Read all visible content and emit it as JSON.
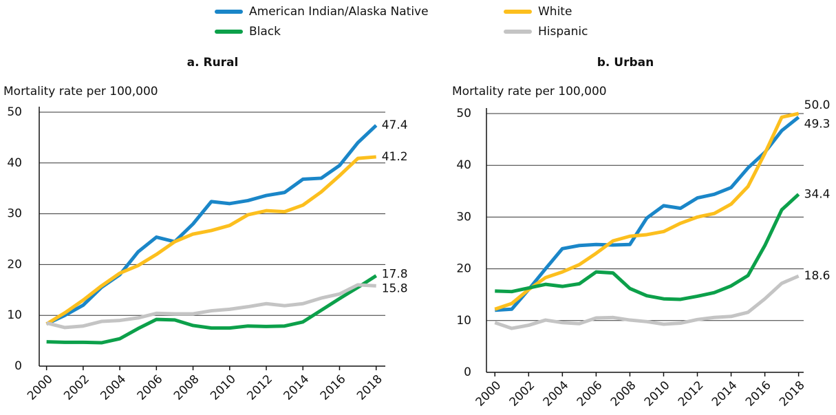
{
  "chart_data": [
    {
      "type": "line",
      "title": "a. Rural",
      "y_label": "Mortality rate per 100,000",
      "x": [
        2000,
        2001,
        2002,
        2003,
        2004,
        2005,
        2006,
        2007,
        2008,
        2009,
        2010,
        2011,
        2012,
        2013,
        2014,
        2015,
        2016,
        2017,
        2018
      ],
      "xlim": [
        1999.6,
        2018.5
      ],
      "xticks": [
        2000,
        2002,
        2004,
        2006,
        2008,
        2010,
        2012,
        2014,
        2016,
        2018
      ],
      "ylim": [
        0,
        50
      ],
      "yticks": [
        0,
        10,
        20,
        30,
        40,
        50
      ],
      "grid": true,
      "series": [
        {
          "name": "American Indian/Alaska Native",
          "color": "#1a86c8",
          "values": [
            8.3,
            10,
            12,
            15.5,
            18,
            22.5,
            25.4,
            24.5,
            28,
            32.4,
            32,
            32.6,
            33.6,
            34.2,
            36.8,
            37,
            39.5,
            44,
            47.4
          ],
          "value_labels": [
            null,
            null,
            null,
            null,
            null,
            null,
            null,
            null,
            null,
            null,
            null,
            null,
            null,
            null,
            null,
            null,
            null,
            null,
            "47.4"
          ]
        },
        {
          "name": "White",
          "color": "#fcbf1e",
          "values": [
            8.3,
            10.5,
            13,
            15.8,
            18.3,
            19.8,
            22,
            24.5,
            26,
            26.7,
            27.7,
            29.8,
            30.6,
            30.4,
            31.7,
            34.3,
            37.5,
            40.9,
            41.2
          ],
          "value_labels": [
            null,
            null,
            null,
            null,
            null,
            null,
            null,
            null,
            null,
            null,
            null,
            null,
            null,
            null,
            null,
            null,
            null,
            null,
            "41.2"
          ]
        },
        {
          "name": "Black",
          "color": "#0ca04a",
          "values": [
            4.8,
            4.7,
            4.7,
            4.6,
            5.4,
            7.4,
            9.2,
            9.1,
            8,
            7.5,
            7.5,
            7.9,
            7.8,
            7.9,
            8.7,
            11,
            13.3,
            15.5,
            17.8
          ],
          "value_labels": [
            null,
            null,
            null,
            null,
            null,
            null,
            null,
            null,
            null,
            null,
            null,
            null,
            null,
            null,
            null,
            null,
            null,
            null,
            "17.8"
          ]
        },
        {
          "name": "Hispanic",
          "color": "#c4c4c4",
          "values": [
            8.5,
            7.6,
            7.9,
            8.8,
            9,
            9.5,
            10.4,
            10.3,
            10.3,
            10.9,
            11.2,
            11.7,
            12.3,
            11.9,
            12.3,
            13.4,
            14.2,
            16,
            15.8
          ],
          "value_labels": [
            null,
            null,
            null,
            null,
            null,
            null,
            null,
            null,
            null,
            null,
            null,
            null,
            null,
            null,
            null,
            null,
            null,
            null,
            "15.8"
          ]
        }
      ]
    },
    {
      "type": "line",
      "title": "b. Urban",
      "y_label": "Mortality rate per 100,000",
      "x": [
        2000,
        2001,
        2002,
        2003,
        2004,
        2005,
        2006,
        2007,
        2008,
        2009,
        2010,
        2011,
        2012,
        2013,
        2014,
        2015,
        2016,
        2017,
        2018
      ],
      "xlim": [
        1999.5,
        2018.3
      ],
      "xticks": [
        2000,
        2002,
        2004,
        2006,
        2008,
        2010,
        2012,
        2014,
        2016,
        2018
      ],
      "ylim": [
        0,
        50
      ],
      "yticks": [
        0,
        10,
        20,
        30,
        40,
        50
      ],
      "grid": true,
      "series": [
        {
          "name": "American Indian/Alaska Native",
          "color": "#1a86c8",
          "values": [
            12,
            12.2,
            16,
            20,
            23.9,
            24.5,
            24.7,
            24.6,
            24.7,
            29.8,
            32.2,
            31.7,
            33.7,
            34.4,
            35.7,
            39.5,
            42.5,
            46.7,
            49.3
          ],
          "value_labels": [
            null,
            null,
            null,
            null,
            null,
            null,
            null,
            null,
            null,
            null,
            null,
            null,
            null,
            null,
            null,
            null,
            null,
            null,
            "49.3"
          ]
        },
        {
          "name": "White",
          "color": "#fcbf1e",
          "values": [
            12.2,
            13.3,
            16,
            18.3,
            19.4,
            20.8,
            23,
            25.4,
            26.3,
            26.6,
            27.2,
            28.8,
            30,
            30.7,
            32.5,
            35.9,
            42.3,
            49.3,
            50.0
          ],
          "value_labels": [
            null,
            null,
            null,
            null,
            null,
            null,
            null,
            null,
            null,
            null,
            null,
            null,
            null,
            null,
            null,
            null,
            null,
            null,
            "50.0"
          ]
        },
        {
          "name": "Black",
          "color": "#0ca04a",
          "values": [
            15.7,
            15.6,
            16.3,
            17,
            16.6,
            17.1,
            19.4,
            19.2,
            16.2,
            14.8,
            14.2,
            14.1,
            14.7,
            15.4,
            16.7,
            18.7,
            24.5,
            31.4,
            34.4
          ],
          "value_labels": [
            null,
            null,
            null,
            null,
            null,
            null,
            null,
            null,
            null,
            null,
            null,
            null,
            null,
            null,
            null,
            null,
            null,
            null,
            "34.4"
          ]
        },
        {
          "name": "Hispanic",
          "color": "#c4c4c4",
          "values": [
            9.6,
            8.5,
            9.1,
            10.1,
            9.6,
            9.4,
            10.5,
            10.6,
            10.1,
            9.8,
            9.3,
            9.5,
            10.2,
            10.6,
            10.8,
            11.6,
            14.2,
            17.2,
            18.6
          ],
          "value_labels": [
            null,
            null,
            null,
            null,
            null,
            null,
            null,
            null,
            null,
            null,
            null,
            null,
            null,
            null,
            null,
            null,
            null,
            null,
            "18.6"
          ]
        }
      ]
    }
  ]
}
